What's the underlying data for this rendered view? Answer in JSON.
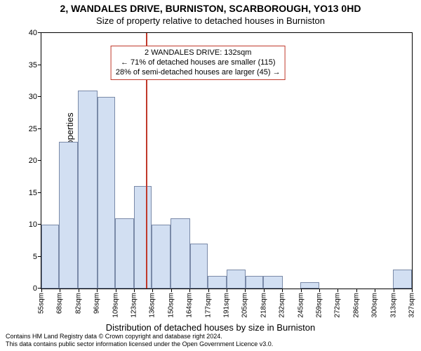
{
  "title": "2, WANDALES DRIVE, BURNISTON, SCARBOROUGH, YO13 0HD",
  "subtitle": "Size of property relative to detached houses in Burniston",
  "ylabel": "Number of detached properties",
  "xlabel": "Distribution of detached houses by size in Burniston",
  "footer_line1": "Contains HM Land Registry data © Crown copyright and database right 2024.",
  "footer_line2": "This data contains public sector information licensed under the Open Government Licence v3.0.",
  "chart": {
    "type": "histogram",
    "ylim": [
      0,
      40
    ],
    "yticks": [
      0,
      5,
      10,
      15,
      20,
      25,
      30,
      35,
      40
    ],
    "xtick_labels": [
      "55sqm",
      "68sqm",
      "82sqm",
      "96sqm",
      "109sqm",
      "123sqm",
      "136sqm",
      "150sqm",
      "164sqm",
      "177sqm",
      "191sqm",
      "205sqm",
      "218sqm",
      "232sqm",
      "245sqm",
      "259sqm",
      "272sqm",
      "286sqm",
      "300sqm",
      "313sqm",
      "327sqm"
    ],
    "x_min": 55,
    "x_max": 327,
    "bar_color": "#d2dff2",
    "bar_border": "#7a8aa8",
    "background_color": "#ffffff",
    "tick_color": "#000000",
    "bars": [
      {
        "x0": 55,
        "x1": 68,
        "y": 10
      },
      {
        "x0": 68,
        "x1": 82,
        "y": 23
      },
      {
        "x0": 82,
        "x1": 96,
        "y": 31
      },
      {
        "x0": 96,
        "x1": 109,
        "y": 30
      },
      {
        "x0": 109,
        "x1": 123,
        "y": 11
      },
      {
        "x0": 123,
        "x1": 136,
        "y": 16
      },
      {
        "x0": 136,
        "x1": 150,
        "y": 10
      },
      {
        "x0": 150,
        "x1": 164,
        "y": 11
      },
      {
        "x0": 164,
        "x1": 177,
        "y": 7
      },
      {
        "x0": 177,
        "x1": 191,
        "y": 2
      },
      {
        "x0": 191,
        "x1": 205,
        "y": 3
      },
      {
        "x0": 205,
        "x1": 218,
        "y": 2
      },
      {
        "x0": 218,
        "x1": 232,
        "y": 2
      },
      {
        "x0": 232,
        "x1": 245,
        "y": 0
      },
      {
        "x0": 245,
        "x1": 259,
        "y": 1
      },
      {
        "x0": 259,
        "x1": 272,
        "y": 0
      },
      {
        "x0": 272,
        "x1": 286,
        "y": 0
      },
      {
        "x0": 286,
        "x1": 300,
        "y": 0
      },
      {
        "x0": 300,
        "x1": 313,
        "y": 0
      },
      {
        "x0": 313,
        "x1": 327,
        "y": 3
      }
    ],
    "marker": {
      "x": 132,
      "color": "#c0392b"
    },
    "annotation": {
      "line1": "2 WANDALES DRIVE: 132sqm",
      "line2": "← 71% of detached houses are smaller (115)",
      "line3": "28% of semi-detached houses are larger (45) →",
      "border_color": "#c0392b",
      "x_center": 170,
      "y_top": 38
    }
  }
}
